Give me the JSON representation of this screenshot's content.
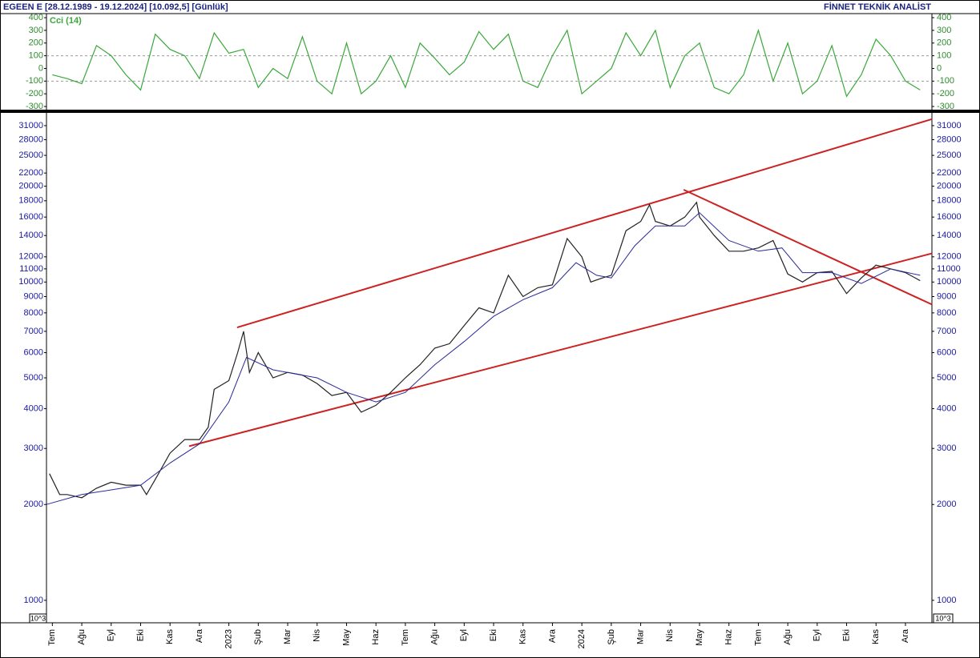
{
  "header": {
    "title": "EGEEN E  [28.12.1989 - 19.12.2024]  [10.092,5]  [Günlük]",
    "brand": "FİNNET TEKNİK ANALİST",
    "unit_label": "10^3"
  },
  "chart_data": [
    {
      "type": "line",
      "legend": "Cci (14)",
      "xlim": [
        -0.2,
        29.9
      ],
      "ylim": [
        -325,
        432
      ],
      "yticks": [
        -300,
        -200,
        -100,
        0,
        100,
        200,
        300,
        400
      ],
      "reference_lines": [
        100,
        -100
      ],
      "series": [
        {
          "color": "#3aa83a",
          "x": [
            0,
            0.5,
            1,
            1.5,
            2,
            2.5,
            3,
            3.5,
            4,
            4.5,
            5,
            5.5,
            6,
            6.5,
            7,
            7.5,
            8,
            8.5,
            9,
            9.5,
            10,
            10.5,
            11,
            11.5,
            12,
            12.5,
            13,
            13.5,
            14,
            14.5,
            15,
            15.5,
            16,
            16.5,
            17,
            17.5,
            18,
            18.5,
            19,
            19.5,
            20,
            20.5,
            21,
            21.5,
            22,
            22.5,
            23,
            23.5,
            24,
            24.5,
            25,
            25.5,
            26,
            26.5,
            27,
            27.5,
            28,
            28.5,
            29,
            29.5
          ],
          "values": [
            -50,
            -80,
            -120,
            180,
            100,
            -50,
            -170,
            270,
            150,
            100,
            -80,
            280,
            120,
            150,
            -150,
            0,
            -80,
            250,
            -100,
            -200,
            200,
            -200,
            -100,
            100,
            -150,
            200,
            80,
            -50,
            50,
            290,
            150,
            270,
            -100,
            -150,
            100,
            300,
            -200,
            -100,
            0,
            280,
            100,
            300,
            -150,
            100,
            200,
            -150,
            -200,
            -50,
            300,
            -100,
            200,
            -200,
            -100,
            180,
            -220,
            -50,
            230,
            100,
            -100,
            -170
          ]
        }
      ]
    },
    {
      "type": "line",
      "log_scale": true,
      "xlim": [
        -0.2,
        29.9
      ],
      "ylim": [
        850,
        34000
      ],
      "xticks": [
        {
          "value": 0,
          "label": "Tem"
        },
        {
          "value": 1,
          "label": "Ağu"
        },
        {
          "value": 2,
          "label": "Eyl"
        },
        {
          "value": 3,
          "label": "Eki"
        },
        {
          "value": 4,
          "label": "Kas"
        },
        {
          "value": 5,
          "label": "Ara"
        },
        {
          "value": 6,
          "label": "2023"
        },
        {
          "value": 7,
          "label": "Şub"
        },
        {
          "value": 8,
          "label": "Mar"
        },
        {
          "value": 9,
          "label": "Nis"
        },
        {
          "value": 10,
          "label": "May"
        },
        {
          "value": 11,
          "label": "Haz"
        },
        {
          "value": 12,
          "label": "Tem"
        },
        {
          "value": 13,
          "label": "Ağu"
        },
        {
          "value": 14,
          "label": "Eyl"
        },
        {
          "value": 15,
          "label": "Eki"
        },
        {
          "value": 16,
          "label": "Kas"
        },
        {
          "value": 17,
          "label": "Ara"
        },
        {
          "value": 18,
          "label": "2024"
        },
        {
          "value": 19,
          "label": "Şub"
        },
        {
          "value": 20,
          "label": "Mar"
        },
        {
          "value": 21,
          "label": "Nis"
        },
        {
          "value": 22,
          "label": "May"
        },
        {
          "value": 23,
          "label": "Haz"
        },
        {
          "value": 24,
          "label": "Tem"
        },
        {
          "value": 25,
          "label": "Ağu"
        },
        {
          "value": 26,
          "label": "Eyl"
        },
        {
          "value": 27,
          "label": "Eki"
        },
        {
          "value": 28,
          "label": "Kas"
        },
        {
          "value": 29,
          "label": "Ara"
        }
      ],
      "yticks": [
        1000,
        2000,
        3000,
        4000,
        5000,
        6000,
        7000,
        8000,
        9000,
        10000,
        11000,
        12000,
        14000,
        16000,
        18000,
        20000,
        22000,
        25000,
        28000,
        31000
      ],
      "series": [
        {
          "color": "#222222",
          "x": [
            -0.1,
            0.25,
            0.5,
            1,
            1.5,
            2,
            2.5,
            3,
            3.2,
            3.5,
            4,
            4.5,
            5,
            5.3,
            5.5,
            6,
            6.3,
            6.5,
            6.7,
            7,
            7.5,
            8,
            8.5,
            9,
            9.5,
            10,
            10.5,
            11,
            11.5,
            12,
            12.5,
            13,
            13.5,
            14,
            14.5,
            15,
            15.5,
            16,
            16.5,
            17,
            17.5,
            18,
            18.3,
            18.7,
            19,
            19.5,
            20,
            20.3,
            20.5,
            21,
            21.5,
            21.9,
            22,
            22.5,
            23,
            23.5,
            24,
            24.5,
            25,
            25.5,
            26,
            26.5,
            27,
            27.5,
            28,
            28.5,
            29,
            29.5
          ],
          "values": [
            2500,
            2150,
            2150,
            2100,
            2250,
            2350,
            2300,
            2300,
            2150,
            2400,
            2900,
            3200,
            3200,
            3500,
            4600,
            4900,
            6000,
            7000,
            5200,
            6000,
            5000,
            5200,
            5100,
            4800,
            4400,
            4500,
            3900,
            4100,
            4500,
            5000,
            5500,
            6200,
            6400,
            7300,
            8300,
            8000,
            10500,
            9000,
            9600,
            9800,
            13700,
            12000,
            10000,
            10300,
            10500,
            14500,
            15500,
            17500,
            15500,
            15000,
            16000,
            17800,
            16000,
            14000,
            12500,
            12500,
            12800,
            13500,
            10600,
            10000,
            10700,
            10800,
            9200,
            10300,
            11300,
            11000,
            10700,
            10100
          ]
        },
        {
          "color": "#2a2a9a",
          "x": [
            -0.2,
            1,
            3,
            4,
            5,
            6,
            6.6,
            7.5,
            9,
            10,
            11,
            12,
            13,
            14,
            15,
            16,
            17,
            17.8,
            18.5,
            19,
            19.8,
            20.5,
            21.5,
            22,
            23,
            24,
            24.8,
            25.5,
            26.5,
            27.5,
            28.5,
            29.5
          ],
          "values": [
            2000,
            2150,
            2300,
            2700,
            3100,
            4200,
            5800,
            5300,
            5000,
            4500,
            4200,
            4500,
            5500,
            6500,
            7800,
            8800,
            9600,
            11500,
            10500,
            10300,
            13000,
            15000,
            15000,
            16500,
            13500,
            12500,
            12800,
            10700,
            10700,
            9900,
            11000,
            10500
          ]
        }
      ],
      "trendline_color": "#cc2222",
      "trendlines": [
        {
          "x": [
            6.28,
            29.9
          ],
          "y": [
            7200,
            32500
          ]
        },
        {
          "x": [
            4.65,
            29.9
          ],
          "y": [
            3050,
            12300
          ]
        },
        {
          "x": [
            21.46,
            29.9
          ],
          "y": [
            19500,
            8500
          ]
        }
      ]
    }
  ]
}
